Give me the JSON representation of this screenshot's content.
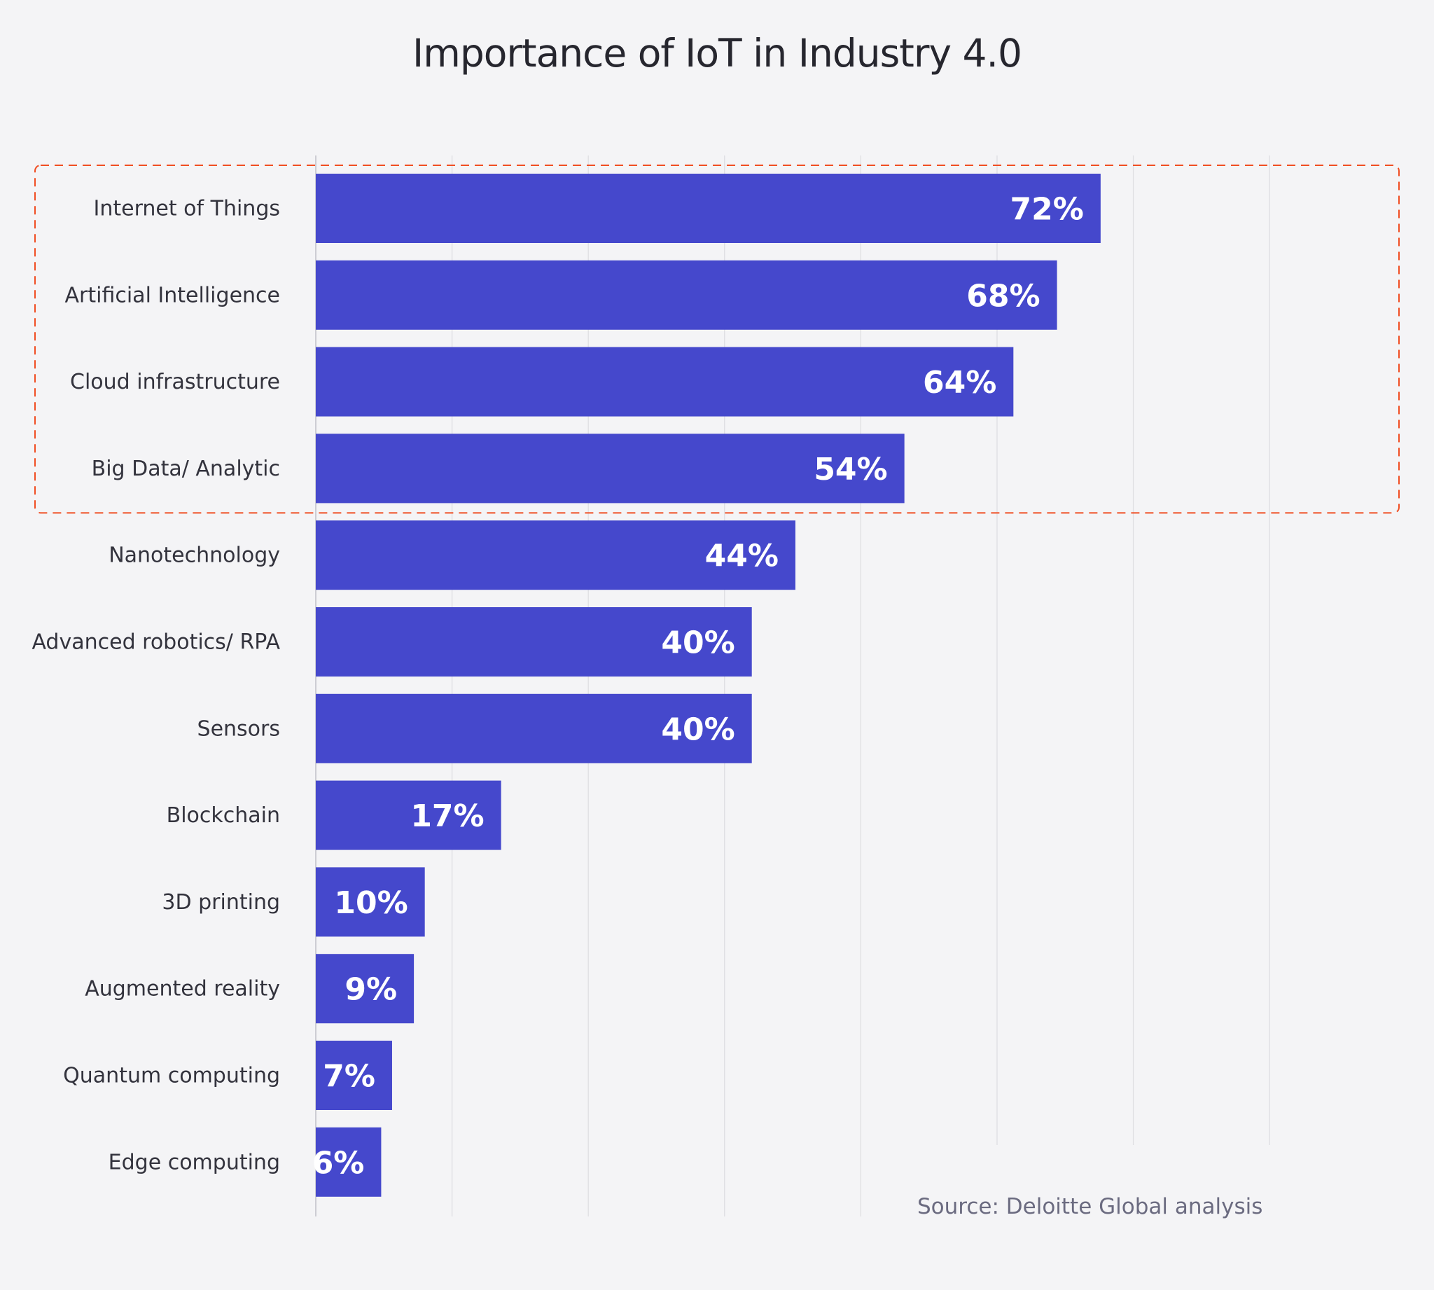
{
  "chart_data": {
    "type": "bar",
    "orientation": "horizontal",
    "title": "Importance of IoT in Industry 4.0",
    "categories": [
      "Internet of Things",
      "Artificial Intelligence",
      "Cloud infrastructure",
      "Big Data/ Analytic",
      "Nanotechnology",
      "Advanced robotics/ RPA",
      "Sensors",
      "Blockchain",
      "3D printing",
      "Augmented reality",
      "Quantum computing",
      "Edge computing"
    ],
    "values": [
      72,
      68,
      64,
      54,
      44,
      40,
      40,
      17,
      10,
      9,
      7,
      6
    ],
    "value_labels": [
      "72%",
      "68%",
      "64%",
      "54%",
      "44%",
      "40%",
      "40%",
      "17%",
      "10%",
      "9%",
      "7%",
      "6%"
    ],
    "unit": "%",
    "xlabel": "",
    "ylabel": "",
    "grid": true,
    "highlight": {
      "categories": [
        "Internet of Things",
        "Artificial Intelligence",
        "Cloud infrastructure",
        "Big Data/ Analytic"
      ],
      "style": "dashed-box",
      "color": "#f04e23"
    },
    "source": "Source: Deloitte Global analysis",
    "colors": {
      "bar": "#4548cc",
      "background": "#f4f4f6",
      "grid": "#dedee2"
    }
  }
}
